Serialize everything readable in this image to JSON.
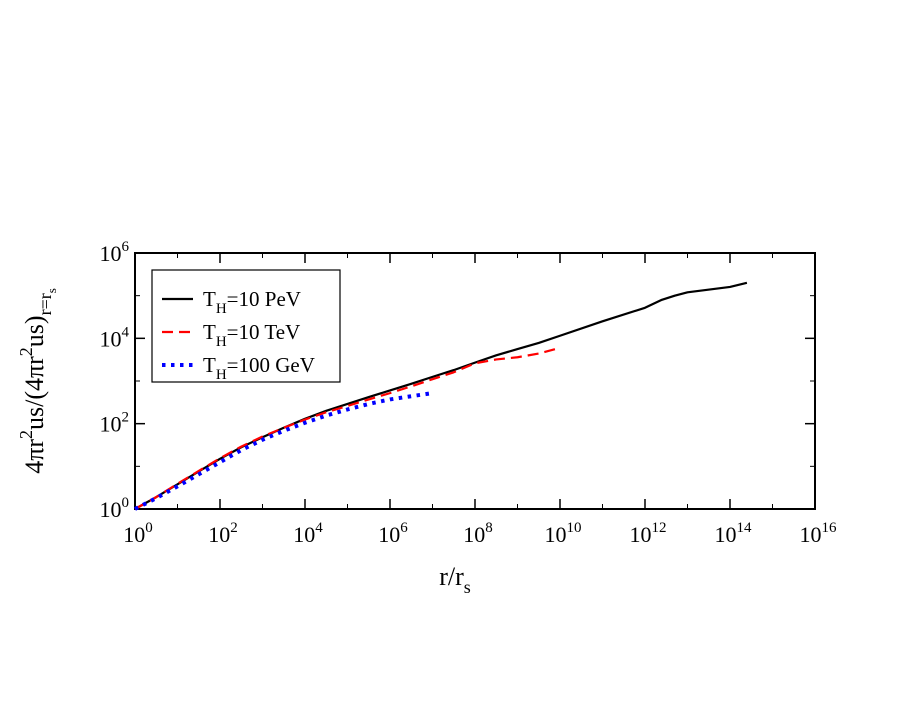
{
  "chart_data": {
    "type": "line",
    "xlabel_main": "r/r",
    "xlabel_sub": "s",
    "ylabel_parts": [
      "4πr",
      "2",
      "us/(4πr",
      "2",
      "us)",
      "r=r",
      "s"
    ],
    "x_scale": "log",
    "y_scale": "log",
    "xlim": [
      1,
      1e+16
    ],
    "ylim": [
      1,
      1000000.0
    ],
    "x_ticks": [
      {
        "value": 1,
        "base": "10",
        "exp": "0"
      },
      {
        "value": 100.0,
        "base": "10",
        "exp": "2"
      },
      {
        "value": 10000.0,
        "base": "10",
        "exp": "4"
      },
      {
        "value": 1000000.0,
        "base": "10",
        "exp": "6"
      },
      {
        "value": 100000000.0,
        "base": "10",
        "exp": "8"
      },
      {
        "value": 10000000000.0,
        "base": "10",
        "exp": "10"
      },
      {
        "value": 1000000000000.0,
        "base": "10",
        "exp": "12"
      },
      {
        "value": 100000000000000.0,
        "base": "10",
        "exp": "14"
      },
      {
        "value": 1e+16,
        "base": "10",
        "exp": "16"
      }
    ],
    "y_ticks": [
      {
        "value": 1,
        "base": "10",
        "exp": "0"
      },
      {
        "value": 100.0,
        "base": "10",
        "exp": "2"
      },
      {
        "value": 10000.0,
        "base": "10",
        "exp": "4"
      },
      {
        "value": 1000000.0,
        "base": "10",
        "exp": "6"
      }
    ],
    "grid": false,
    "legend_position": "top-left",
    "series": [
      {
        "legend_main": "T",
        "legend_sub": "H",
        "legend_rest": "=10 PeV",
        "color": "#000000",
        "style": "solid",
        "points": [
          [
            1,
            1
          ],
          [
            3.16,
            1.9
          ],
          [
            10,
            3.8
          ],
          [
            31.6,
            7.6
          ],
          [
            100,
            15
          ],
          [
            316,
            28
          ],
          [
            1000,
            48
          ],
          [
            3160,
            80
          ],
          [
            10000,
            130
          ],
          [
            31600,
            200
          ],
          [
            100000,
            290
          ],
          [
            316000,
            420
          ],
          [
            1000000,
            600
          ],
          [
            3160000,
            860
          ],
          [
            10000000,
            1250
          ],
          [
            31600000,
            1800
          ],
          [
            100000000,
            2700
          ],
          [
            316000000,
            4000
          ],
          [
            1000000000,
            5600
          ],
          [
            3160000000,
            7800
          ],
          [
            10000000000,
            11500
          ],
          [
            100000000000,
            25000
          ],
          [
            1000000000000,
            52000
          ],
          [
            2500000000000,
            80000
          ],
          [
            5000000000000,
            100000
          ],
          [
            10000000000000,
            120000
          ],
          [
            100000000000000,
            160000
          ],
          [
            250000000000000,
            200000
          ]
        ]
      },
      {
        "legend_main": "T",
        "legend_sub": "H",
        "legend_rest": "=10 TeV",
        "color": "#ff0000",
        "style": "dashed",
        "points": [
          [
            1,
            1
          ],
          [
            3.16,
            1.9
          ],
          [
            10,
            3.9
          ],
          [
            31.6,
            7.8
          ],
          [
            100,
            15.5
          ],
          [
            316,
            29
          ],
          [
            1000,
            50
          ],
          [
            3160,
            80
          ],
          [
            10000,
            125
          ],
          [
            31600,
            185
          ],
          [
            100000,
            260
          ],
          [
            316000,
            370
          ],
          [
            1000000,
            520
          ],
          [
            3160000,
            750
          ],
          [
            10000000,
            1100
          ],
          [
            31600000,
            1600
          ],
          [
            100000000,
            2600
          ],
          [
            316000000,
            3200
          ],
          [
            1000000000,
            3600
          ],
          [
            3160000000,
            4400
          ],
          [
            10000000000,
            6000
          ]
        ]
      },
      {
        "legend_main": "T",
        "legend_sub": "H",
        "legend_rest": "=100 GeV",
        "color": "#0000ff",
        "style": "dotted",
        "points": [
          [
            1,
            1
          ],
          [
            3.16,
            1.8
          ],
          [
            10,
            3.4
          ],
          [
            31.6,
            6.5
          ],
          [
            100,
            12.5
          ],
          [
            316,
            24
          ],
          [
            1000,
            42
          ],
          [
            3160,
            68
          ],
          [
            10000,
            105
          ],
          [
            31600,
            155
          ],
          [
            100000,
            215
          ],
          [
            316000,
            290
          ],
          [
            1000000,
            370
          ],
          [
            3160000,
            440
          ],
          [
            10000000,
            520
          ]
        ]
      }
    ]
  }
}
